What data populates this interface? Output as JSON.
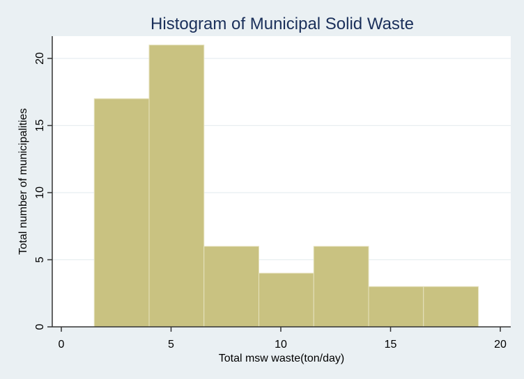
{
  "chart_data": {
    "type": "bar",
    "subtype": "histogram",
    "title": "Histogram of Municipal Solid Waste",
    "xlabel": "Total msw waste(ton/day)",
    "ylabel": "Total number of municipalities",
    "xlim": [
      0,
      20
    ],
    "ylim": [
      0,
      21
    ],
    "xticks": [
      0,
      5,
      10,
      15,
      20
    ],
    "yticks": [
      0,
      5,
      10,
      15,
      20
    ],
    "grid": true,
    "bins": [
      {
        "start": 1.5,
        "end": 4.0,
        "value": 17
      },
      {
        "start": 4.0,
        "end": 6.5,
        "value": 21
      },
      {
        "start": 6.5,
        "end": 9.0,
        "value": 6
      },
      {
        "start": 9.0,
        "end": 11.5,
        "value": 4
      },
      {
        "start": 11.5,
        "end": 14.0,
        "value": 6
      },
      {
        "start": 14.0,
        "end": 16.5,
        "value": 3
      },
      {
        "start": 16.5,
        "end": 19.0,
        "value": 3
      }
    ],
    "colors": {
      "bar": "#c9c281",
      "bar_edge": "#e6e2bf",
      "background": "#eaf0f3",
      "plot": "#ffffff",
      "title": "#1a2f5a"
    }
  }
}
